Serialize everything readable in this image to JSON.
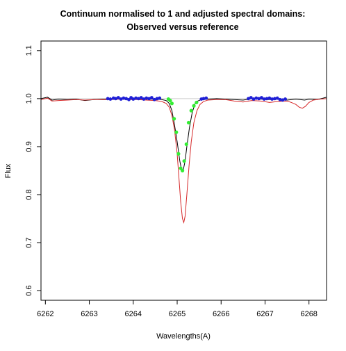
{
  "chart_data": {
    "type": "line",
    "title": "Continuum normalised to 1 and adjusted spectral domains:",
    "subtitle": "Observed versus reference",
    "xlabel": "Wavelengths(A)",
    "ylabel": "Flux",
    "xlim": [
      6261.9,
      6268.4
    ],
    "ylim": [
      0.58,
      1.12
    ],
    "x_ticks": [
      6262,
      6263,
      6264,
      6265,
      6266,
      6267,
      6268
    ],
    "y_ticks": [
      0.6,
      0.7,
      0.8,
      0.9,
      1.0,
      1.1
    ],
    "y_tick_labels": [
      "0.6",
      "0.7",
      "0.8",
      "0.9",
      "1.0",
      "1.1"
    ],
    "reference_line": 1.0,
    "colors": {
      "observed": "#000000",
      "reference": "#d62728",
      "continuum_points": "#1f1fd6",
      "line_points": "#33ee33",
      "reference_line": "#cccccc"
    },
    "series": [
      {
        "id": "observed",
        "x": [
          6261.9,
          6262.05,
          6262.15,
          6262.3,
          6262.5,
          6262.7,
          6262.9,
          6263.1,
          6263.3,
          6263.5,
          6263.7,
          6263.9,
          6264.1,
          6264.3,
          6264.5,
          6264.65,
          6264.75,
          6264.82,
          6264.88,
          6264.94,
          6265.0,
          6265.06,
          6265.1,
          6265.14,
          6265.18,
          6265.22,
          6265.28,
          6265.34,
          6265.4,
          6265.47,
          6265.55,
          6265.7,
          6265.9,
          6266.1,
          6266.3,
          6266.5,
          6266.7,
          6266.9,
          6267.1,
          6267.3,
          6267.5,
          6267.7,
          6267.8,
          6267.9,
          6268.0,
          6268.2,
          6268.4
        ],
        "y": [
          1.0,
          1.003,
          0.997,
          0.999,
          0.998,
          0.999,
          0.996,
          0.998,
          0.999,
          0.999,
          1.0,
          0.999,
          1.0,
          0.999,
          0.999,
          0.998,
          0.996,
          0.99,
          0.975,
          0.945,
          0.91,
          0.87,
          0.852,
          0.852,
          0.87,
          0.9,
          0.94,
          0.97,
          0.988,
          0.995,
          0.998,
          0.999,
          1.0,
          0.999,
          0.998,
          0.997,
          1.0,
          0.999,
          0.998,
          0.999,
          0.997,
          0.999,
          0.998,
          0.997,
          0.999,
          0.998,
          1.003
        ]
      },
      {
        "id": "reference",
        "x": [
          6261.9,
          6262.05,
          6262.15,
          6262.3,
          6262.5,
          6262.7,
          6262.9,
          6263.1,
          6263.3,
          6263.5,
          6263.7,
          6263.9,
          6264.1,
          6264.3,
          6264.5,
          6264.65,
          6264.75,
          6264.82,
          6264.88,
          6264.94,
          6265.0,
          6265.04,
          6265.08,
          6265.12,
          6265.15,
          6265.18,
          6265.22,
          6265.27,
          6265.32,
          6265.38,
          6265.45,
          6265.52,
          6265.6,
          6265.7,
          6265.9,
          6266.1,
          6266.3,
          6266.5,
          6266.7,
          6266.9,
          6267.1,
          6267.3,
          6267.5,
          6267.6,
          6267.7,
          6267.78,
          6267.85,
          6267.92,
          6268.0,
          6268.1,
          6268.25,
          6268.4
        ],
        "y": [
          0.998,
          1.001,
          0.995,
          0.996,
          0.997,
          0.998,
          0.997,
          0.998,
          0.998,
          0.998,
          0.999,
          0.998,
          0.998,
          0.997,
          0.996,
          0.994,
          0.99,
          0.982,
          0.965,
          0.935,
          0.885,
          0.835,
          0.785,
          0.75,
          0.742,
          0.755,
          0.8,
          0.86,
          0.91,
          0.95,
          0.975,
          0.988,
          0.994,
          0.997,
          0.998,
          0.998,
          0.995,
          0.993,
          0.996,
          0.995,
          0.992,
          0.994,
          0.995,
          0.992,
          0.988,
          0.982,
          0.98,
          0.984,
          0.992,
          0.997,
          0.999,
          1.0
        ]
      }
    ],
    "continuum_points": {
      "x": [
        6263.42,
        6263.48,
        6263.55,
        6263.6,
        6263.66,
        6263.72,
        6263.78,
        6263.84,
        6263.9,
        6263.95,
        6264.0,
        6264.06,
        6264.12,
        6264.18,
        6264.24,
        6264.3,
        6264.36,
        6264.42,
        6264.48,
        6264.54,
        6264.6,
        6265.55,
        6265.6,
        6265.66,
        6266.62,
        6266.68,
        6266.74,
        6266.8,
        6266.86,
        6266.92,
        6266.98,
        6267.04,
        6267.1,
        6267.16,
        6267.22,
        6267.28,
        6267.34,
        6267.4,
        6267.46
      ],
      "y": [
        1.0,
        0.999,
        1.001,
        1.0,
        1.002,
        0.999,
        1.001,
        1.0,
        0.998,
        1.002,
        0.999,
        1.001,
        1.0,
        1.002,
        0.999,
        1.001,
        1.0,
        1.002,
        0.998,
        1.0,
        1.001,
        0.999,
        1.0,
        1.001,
        1.0,
        1.002,
        0.999,
        1.001,
        1.0,
        1.002,
        0.999,
        1.0,
        1.001,
        0.999,
        1.0,
        1.001,
        0.998,
        0.997,
        0.999
      ]
    },
    "line_points": {
      "x": [
        6264.8,
        6264.84,
        6264.88,
        6264.93,
        6264.98,
        6265.03,
        6265.08,
        6265.12,
        6265.16,
        6265.21,
        6265.26,
        6265.32,
        6265.38,
        6265.44
      ],
      "y": [
        0.999,
        0.996,
        0.99,
        0.958,
        0.93,
        0.885,
        0.855,
        0.85,
        0.87,
        0.905,
        0.95,
        0.975,
        0.985,
        0.992
      ]
    }
  }
}
